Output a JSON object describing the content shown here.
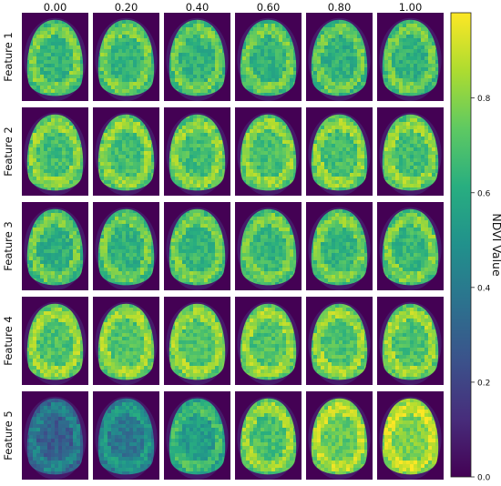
{
  "chart_data": {
    "type": "heatmap",
    "title": "",
    "column_labels": [
      "0.00",
      "0.20",
      "0.40",
      "0.60",
      "0.80",
      "1.00"
    ],
    "row_labels": [
      "Feature 1",
      "Feature 2",
      "Feature 3",
      "Feature 4",
      "Feature 5"
    ],
    "colorbar": {
      "label": "NDVI Value",
      "ticks": [
        "0.0",
        "0.2",
        "0.4",
        "0.6",
        "0.8"
      ],
      "tick_values": [
        0.0,
        0.2,
        0.4,
        0.6,
        0.8
      ],
      "range": [
        0.0,
        0.98
      ],
      "colormap": "viridis"
    },
    "background_value": 0.0,
    "approx_mean_ndvi": [
      [
        0.7,
        0.7,
        0.69,
        0.69,
        0.68,
        0.68
      ],
      [
        0.74,
        0.74,
        0.74,
        0.74,
        0.74,
        0.74
      ],
      [
        0.68,
        0.69,
        0.7,
        0.7,
        0.7,
        0.71
      ],
      [
        0.76,
        0.76,
        0.76,
        0.76,
        0.76,
        0.76
      ],
      [
        0.35,
        0.45,
        0.6,
        0.75,
        0.8,
        0.84
      ]
    ]
  }
}
